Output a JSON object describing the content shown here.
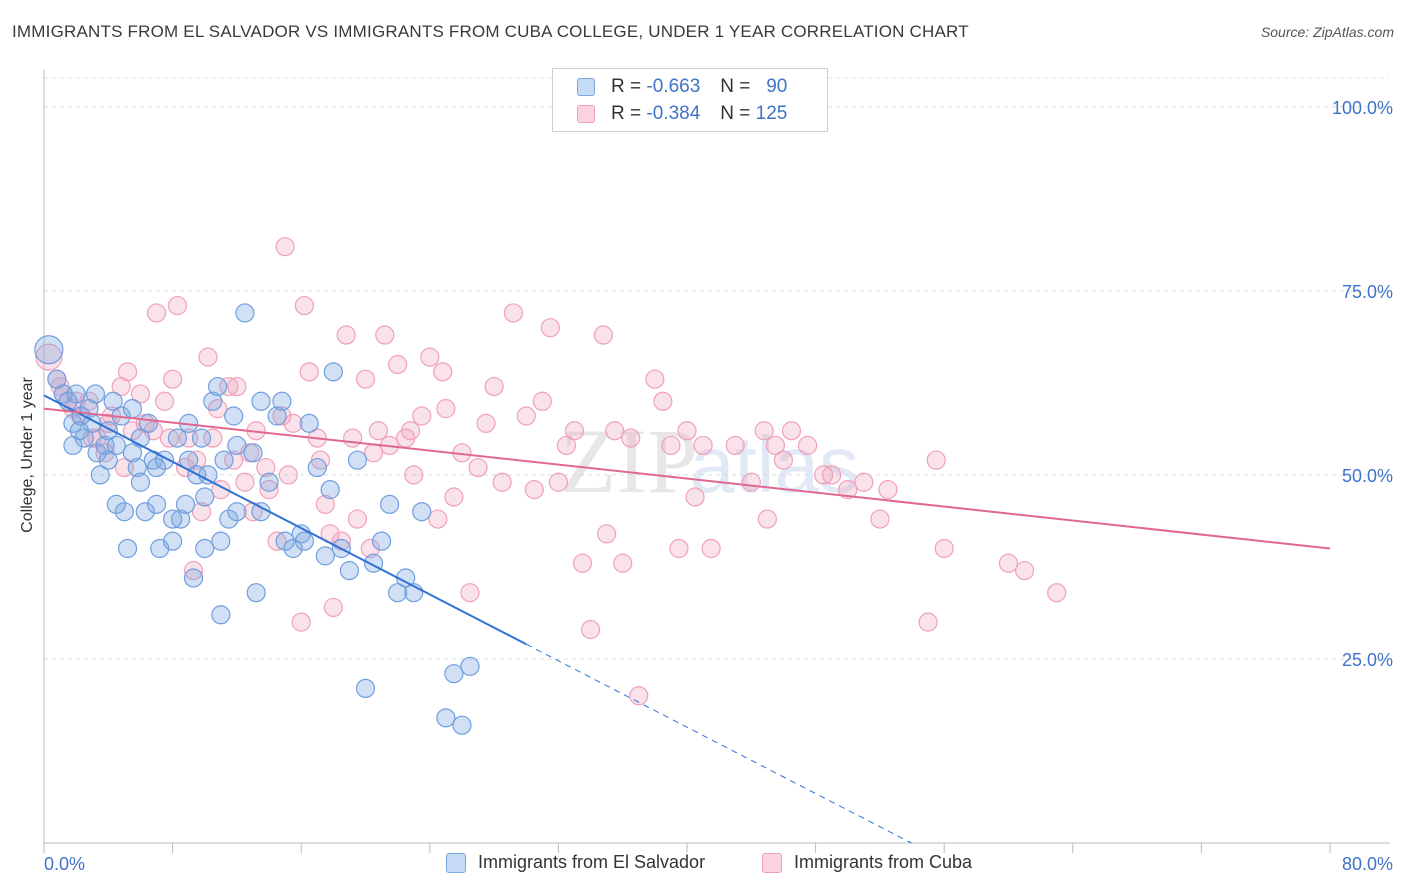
{
  "title": "IMMIGRANTS FROM EL SALVADOR VS IMMIGRANTS FROM CUBA COLLEGE, UNDER 1 YEAR CORRELATION CHART",
  "source": "Source: ZipAtlas.com",
  "watermark": {
    "zip": "ZIP",
    "atlas": "atlas"
  },
  "legend_top": {
    "rows": [
      {
        "r_label": "R =",
        "r_value": "-0.663",
        "n_label": "N =",
        "n_value": "90",
        "color": "#7aa7e0"
      },
      {
        "r_label": "R =",
        "r_value": "-0.384",
        "n_label": "N =",
        "n_value": "125",
        "color": "#f0a0bb"
      }
    ]
  },
  "chart_data": {
    "type": "scatter",
    "title": "IMMIGRANTS FROM EL SALVADOR VS IMMIGRANTS FROM CUBA COLLEGE, UNDER 1 YEAR CORRELATION CHART",
    "xlabel": "",
    "ylabel": "College, Under 1 year",
    "xlim": [
      0,
      80
    ],
    "ylim": [
      0,
      105
    ],
    "x_tick_labels": [
      "0.0%",
      "80.0%"
    ],
    "y_tick_labels": [
      "100.0%",
      "75.0%",
      "50.0%",
      "25.0%"
    ],
    "y_tick_values": [
      100,
      75,
      50,
      25
    ],
    "grid": true,
    "series": [
      {
        "name": "Immigrants from El Salvador",
        "color": "#6f9fe0",
        "line_color": "#2f72d4",
        "trend": {
          "x0": 0,
          "y0": 60.8,
          "x1": 30,
          "y1": 27,
          "dash_to_x": 80,
          "dash_to_y": -29.6
        },
        "points": [
          [
            0.3,
            67
          ],
          [
            0.8,
            63
          ],
          [
            1.2,
            61
          ],
          [
            1.5,
            60
          ],
          [
            1.8,
            57
          ],
          [
            2,
            61
          ],
          [
            2.3,
            58
          ],
          [
            2.5,
            55
          ],
          [
            2.8,
            59
          ],
          [
            3,
            57
          ],
          [
            3.3,
            53
          ],
          [
            3.5,
            50
          ],
          [
            3.8,
            54
          ],
          [
            4,
            56
          ],
          [
            4.3,
            60
          ],
          [
            4.5,
            54
          ],
          [
            4.8,
            58
          ],
          [
            5,
            45
          ],
          [
            5.2,
            40
          ],
          [
            5.5,
            53
          ],
          [
            5.8,
            51
          ],
          [
            6,
            55
          ],
          [
            6.3,
            45
          ],
          [
            6.5,
            57
          ],
          [
            6.8,
            52
          ],
          [
            7,
            51
          ],
          [
            7.2,
            40
          ],
          [
            7.5,
            52
          ],
          [
            8,
            41
          ],
          [
            8.3,
            55
          ],
          [
            8.5,
            44
          ],
          [
            8.8,
            46
          ],
          [
            9,
            52
          ],
          [
            9.3,
            36
          ],
          [
            9.5,
            50
          ],
          [
            9.8,
            55
          ],
          [
            10,
            47
          ],
          [
            10.2,
            50
          ],
          [
            10.5,
            60
          ],
          [
            10.8,
            62
          ],
          [
            11,
            41
          ],
          [
            11.2,
            52
          ],
          [
            11.5,
            44
          ],
          [
            11.8,
            58
          ],
          [
            12,
            54
          ],
          [
            12.5,
            72
          ],
          [
            13,
            53
          ],
          [
            13.2,
            34
          ],
          [
            13.5,
            45
          ],
          [
            14,
            49
          ],
          [
            14.5,
            58
          ],
          [
            14.8,
            60
          ],
          [
            15,
            41
          ],
          [
            15.5,
            40
          ],
          [
            16,
            42
          ],
          [
            16.5,
            57
          ],
          [
            17,
            51
          ],
          [
            17.5,
            39
          ],
          [
            17.8,
            48
          ],
          [
            18,
            64
          ],
          [
            18.5,
            40
          ],
          [
            19,
            37
          ],
          [
            20,
            21
          ],
          [
            20.5,
            38
          ],
          [
            21,
            41
          ],
          [
            21.5,
            46
          ],
          [
            22,
            34
          ],
          [
            22.5,
            36
          ],
          [
            23,
            34
          ],
          [
            23.5,
            45
          ],
          [
            25,
            17
          ],
          [
            25.5,
            23
          ],
          [
            26.5,
            24
          ],
          [
            26,
            16
          ],
          [
            11,
            31
          ],
          [
            12,
            45
          ],
          [
            4.5,
            46
          ],
          [
            7,
            46
          ],
          [
            10,
            40
          ],
          [
            5.5,
            59
          ],
          [
            3.2,
            61
          ],
          [
            2.2,
            56
          ],
          [
            1.8,
            54
          ],
          [
            6,
            49
          ],
          [
            8,
            44
          ],
          [
            9,
            57
          ],
          [
            13.5,
            60
          ],
          [
            19.5,
            52
          ],
          [
            16.2,
            41
          ],
          [
            4,
            52
          ]
        ],
        "point_size": 9
      },
      {
        "name": "Immigrants from Cuba",
        "color": "#f0a0bb",
        "line_color": "#e06890",
        "trend": {
          "x0": 0,
          "y0": 59,
          "x1": 80,
          "y1": 40
        },
        "points": [
          [
            0.3,
            66
          ],
          [
            0.8,
            63
          ],
          [
            1.2,
            61
          ],
          [
            1.8,
            59
          ],
          [
            2.3,
            58
          ],
          [
            2.8,
            60
          ],
          [
            3.3,
            55
          ],
          [
            3.8,
            53
          ],
          [
            4.2,
            58
          ],
          [
            4.8,
            62
          ],
          [
            5.2,
            64
          ],
          [
            5.5,
            56
          ],
          [
            6,
            61
          ],
          [
            6.3,
            57
          ],
          [
            6.8,
            56
          ],
          [
            7,
            72
          ],
          [
            7.5,
            60
          ],
          [
            8,
            63
          ],
          [
            8.3,
            73
          ],
          [
            8.8,
            51
          ],
          [
            9,
            55
          ],
          [
            9.3,
            37
          ],
          [
            9.8,
            45
          ],
          [
            10.2,
            66
          ],
          [
            10.5,
            55
          ],
          [
            10.8,
            59
          ],
          [
            11,
            48
          ],
          [
            11.5,
            62
          ],
          [
            12,
            62
          ],
          [
            12.5,
            49
          ],
          [
            12.8,
            53
          ],
          [
            13.2,
            56
          ],
          [
            13.8,
            51
          ],
          [
            14,
            48
          ],
          [
            14.5,
            41
          ],
          [
            14.8,
            58
          ],
          [
            15,
            81
          ],
          [
            15.5,
            57
          ],
          [
            16,
            30
          ],
          [
            16.2,
            73
          ],
          [
            16.5,
            64
          ],
          [
            17,
            55
          ],
          [
            17.5,
            46
          ],
          [
            17.8,
            42
          ],
          [
            18,
            32
          ],
          [
            18.5,
            41
          ],
          [
            18.8,
            69
          ],
          [
            19.2,
            55
          ],
          [
            19.5,
            44
          ],
          [
            20,
            63
          ],
          [
            20.3,
            40
          ],
          [
            20.8,
            56
          ],
          [
            21.2,
            69
          ],
          [
            21.5,
            54
          ],
          [
            22,
            65
          ],
          [
            22.5,
            55
          ],
          [
            22.8,
            56
          ],
          [
            23.5,
            58
          ],
          [
            24,
            66
          ],
          [
            24.5,
            44
          ],
          [
            24.8,
            64
          ],
          [
            25,
            59
          ],
          [
            25.5,
            47
          ],
          [
            26,
            53
          ],
          [
            26.5,
            34
          ],
          [
            27,
            51
          ],
          [
            27.5,
            57
          ],
          [
            28,
            62
          ],
          [
            28.5,
            49
          ],
          [
            29.2,
            72
          ],
          [
            30,
            58
          ],
          [
            30.5,
            48
          ],
          [
            31,
            60
          ],
          [
            31.5,
            70
          ],
          [
            32,
            49
          ],
          [
            32.5,
            54
          ],
          [
            33,
            56
          ],
          [
            33.5,
            38
          ],
          [
            34,
            29
          ],
          [
            34.8,
            69
          ],
          [
            35,
            42
          ],
          [
            35.5,
            56
          ],
          [
            36,
            38
          ],
          [
            36.5,
            55
          ],
          [
            37,
            20
          ],
          [
            38,
            63
          ],
          [
            38.5,
            60
          ],
          [
            39,
            54
          ],
          [
            39.5,
            40
          ],
          [
            40,
            56
          ],
          [
            40.5,
            47
          ],
          [
            41,
            54
          ],
          [
            41.5,
            40
          ],
          [
            43,
            54
          ],
          [
            44,
            49
          ],
          [
            44.8,
            56
          ],
          [
            45,
            44
          ],
          [
            45.5,
            54
          ],
          [
            46,
            52
          ],
          [
            46.5,
            56
          ],
          [
            47.5,
            54
          ],
          [
            48.5,
            50
          ],
          [
            49,
            50
          ],
          [
            50,
            48
          ],
          [
            51,
            49
          ],
          [
            52,
            44
          ],
          [
            52.5,
            48
          ],
          [
            55,
            30
          ],
          [
            55.5,
            52
          ],
          [
            56,
            40
          ],
          [
            60,
            38
          ],
          [
            61,
            37
          ],
          [
            63,
            34
          ],
          [
            1,
            62
          ],
          [
            2,
            60
          ],
          [
            3,
            55
          ],
          [
            4,
            57
          ],
          [
            5,
            51
          ],
          [
            7.8,
            55
          ],
          [
            9.5,
            52
          ],
          [
            11.8,
            52
          ],
          [
            13,
            45
          ],
          [
            15.2,
            50
          ],
          [
            17.2,
            52
          ],
          [
            20.5,
            53
          ],
          [
            23,
            50
          ]
        ],
        "point_size": 9
      }
    ]
  },
  "legend_bottom": [
    {
      "label": "Immigrants from El Salvador",
      "color": "#7aa7e0"
    },
    {
      "label": "Immigrants from Cuba",
      "color": "#f0a0bb"
    }
  ]
}
